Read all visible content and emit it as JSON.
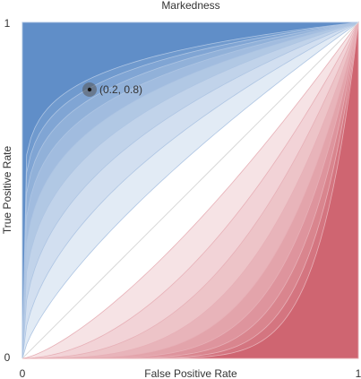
{
  "chart_data": {
    "type": "area",
    "title": "Markedness",
    "xlabel": "False Positive Rate",
    "ylabel": "True Positive Rate",
    "xlim": [
      0,
      1
    ],
    "ylim": [
      0,
      1
    ],
    "x_ticks": [
      "0",
      "1"
    ],
    "y_ticks": [
      "0",
      "1"
    ],
    "grid": false,
    "legend": "none",
    "diagonal": {
      "from": [
        0,
        0
      ],
      "to": [
        1,
        1
      ]
    },
    "contour_levels": [
      0.1,
      0.2,
      0.3,
      0.4,
      0.5,
      0.6,
      0.7,
      0.8,
      0.9
    ],
    "colors": {
      "positive": "#4a7fc1",
      "negative": "#c9505e",
      "diagonal": "#d9d9d9",
      "point": "#555555"
    },
    "annotation": {
      "x": 0.2,
      "y": 0.8,
      "label": "(0.2, 0.8)"
    }
  }
}
